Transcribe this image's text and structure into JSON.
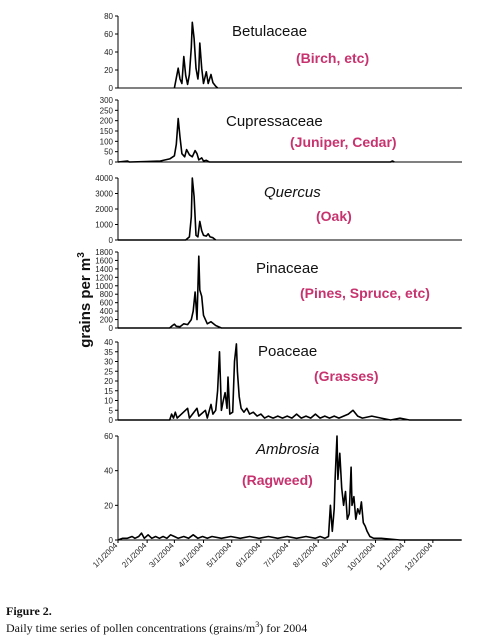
{
  "figure": {
    "label": "Figure 2.",
    "caption_prefix": "Daily time series of pollen concentrations (grains/m",
    "caption_sup": "3",
    "caption_suffix": ") for 2004"
  },
  "chart_data": {
    "type": "line",
    "ylabel": "grains per m",
    "ylabel_sup": "3",
    "x_tick_labels": [
      "1/1/2004",
      "2/1/2004",
      "3/1/2004",
      "4/1/2004",
      "5/1/2004",
      "6/1/2004",
      "7/1/2004",
      "8/1/2004",
      "9/1/2004",
      "10/1/2004",
      "11/1/2004",
      "12/1/2004"
    ],
    "panels": [
      {
        "name": "Betulaceae",
        "common": "(Birch, etc)",
        "italic": false,
        "ylim": [
          0,
          80
        ],
        "yticks": [
          "0",
          "20",
          "40",
          "60",
          "80"
        ],
        "series": [
          [
            60,
            0
          ],
          [
            64,
            22
          ],
          [
            66,
            10
          ],
          [
            68,
            5
          ],
          [
            70,
            35
          ],
          [
            72,
            14
          ],
          [
            74,
            4
          ],
          [
            76,
            15
          ],
          [
            78,
            45
          ],
          [
            79,
            73
          ],
          [
            81,
            55
          ],
          [
            83,
            22
          ],
          [
            85,
            10
          ],
          [
            86,
            20
          ],
          [
            87,
            50
          ],
          [
            89,
            22
          ],
          [
            91,
            5
          ],
          [
            94,
            18
          ],
          [
            96,
            5
          ],
          [
            99,
            15
          ],
          [
            101,
            6
          ],
          [
            104,
            2
          ],
          [
            106,
            0
          ]
        ]
      },
      {
        "name": "Cupressaceae",
        "common": "(Juniper, Cedar)",
        "italic": false,
        "ylim": [
          0,
          300
        ],
        "yticks": [
          "0",
          "50",
          "100",
          "150",
          "200",
          "250",
          "300"
        ],
        "series": [
          [
            0,
            0
          ],
          [
            10,
            5
          ],
          [
            12,
            0
          ],
          [
            30,
            2
          ],
          [
            45,
            5
          ],
          [
            55,
            15
          ],
          [
            60,
            30
          ],
          [
            62,
            85
          ],
          [
            64,
            210
          ],
          [
            66,
            120
          ],
          [
            68,
            40
          ],
          [
            71,
            25
          ],
          [
            73,
            60
          ],
          [
            76,
            35
          ],
          [
            79,
            25
          ],
          [
            82,
            55
          ],
          [
            84,
            40
          ],
          [
            86,
            10
          ],
          [
            89,
            20
          ],
          [
            91,
            5
          ],
          [
            94,
            8
          ],
          [
            97,
            0
          ],
          [
            290,
            0
          ],
          [
            292,
            5
          ],
          [
            294,
            0
          ]
        ]
      },
      {
        "name": "Quercus",
        "common": "(Oak)",
        "italic": true,
        "ylim": [
          0,
          4000
        ],
        "yticks": [
          "0",
          "1000",
          "2000",
          "3000",
          "4000"
        ],
        "series": [
          [
            0,
            0
          ],
          [
            72,
            0
          ],
          [
            74,
            100
          ],
          [
            76,
            200
          ],
          [
            78,
            1500
          ],
          [
            79,
            4000
          ],
          [
            81,
            2800
          ],
          [
            83,
            300
          ],
          [
            85,
            200
          ],
          [
            87,
            1200
          ],
          [
            89,
            600
          ],
          [
            91,
            300
          ],
          [
            94,
            250
          ],
          [
            96,
            400
          ],
          [
            98,
            200
          ],
          [
            101,
            150
          ],
          [
            104,
            0
          ]
        ]
      },
      {
        "name": "Pinaceae",
        "common": "(Pines, Spruce, etc)",
        "italic": false,
        "ylim": [
          0,
          1800
        ],
        "yticks": [
          "0",
          "200",
          "400",
          "600",
          "800",
          "1000",
          "1200",
          "1400",
          "1600",
          "1800"
        ],
        "series": [
          [
            0,
            0
          ],
          [
            55,
            0
          ],
          [
            58,
            60
          ],
          [
            60,
            90
          ],
          [
            62,
            40
          ],
          [
            66,
            30
          ],
          [
            70,
            100
          ],
          [
            74,
            80
          ],
          [
            78,
            200
          ],
          [
            80,
            400
          ],
          [
            82,
            850
          ],
          [
            84,
            200
          ],
          [
            86,
            1700
          ],
          [
            87,
            900
          ],
          [
            89,
            750
          ],
          [
            91,
            300
          ],
          [
            93,
            200
          ],
          [
            95,
            100
          ],
          [
            99,
            150
          ],
          [
            104,
            60
          ],
          [
            110,
            0
          ],
          [
            365,
            0
          ]
        ]
      },
      {
        "name": "Poaceae",
        "common": "(Grasses)",
        "italic": false,
        "ylim": [
          0,
          40
        ],
        "yticks": [
          "0",
          "5",
          "10",
          "15",
          "20",
          "25",
          "30",
          "35",
          "40"
        ],
        "series": [
          [
            0,
            0
          ],
          [
            55,
            0
          ],
          [
            57,
            3
          ],
          [
            59,
            1
          ],
          [
            61,
            4
          ],
          [
            63,
            1
          ],
          [
            74,
            6
          ],
          [
            76,
            1
          ],
          [
            84,
            6
          ],
          [
            86,
            2
          ],
          [
            93,
            5
          ],
          [
            95,
            1
          ],
          [
            99,
            8
          ],
          [
            101,
            3
          ],
          [
            104,
            5
          ],
          [
            106,
            15
          ],
          [
            108,
            35
          ],
          [
            110,
            5
          ],
          [
            112,
            10
          ],
          [
            114,
            14
          ],
          [
            116,
            6
          ],
          [
            117,
            22
          ],
          [
            119,
            3
          ],
          [
            122,
            4
          ],
          [
            124,
            30
          ],
          [
            126,
            39
          ],
          [
            127,
            25
          ],
          [
            129,
            12
          ],
          [
            131,
            6
          ],
          [
            134,
            4
          ],
          [
            137,
            6
          ],
          [
            140,
            3
          ],
          [
            144,
            4
          ],
          [
            148,
            2
          ],
          [
            152,
            3
          ],
          [
            156,
            1
          ],
          [
            160,
            2
          ],
          [
            165,
            1
          ],
          [
            170,
            2
          ],
          [
            175,
            1
          ],
          [
            180,
            2
          ],
          [
            185,
            1
          ],
          [
            190,
            3
          ],
          [
            195,
            1
          ],
          [
            200,
            2
          ],
          [
            205,
            1
          ],
          [
            210,
            3
          ],
          [
            215,
            1
          ],
          [
            220,
            2
          ],
          [
            225,
            1
          ],
          [
            230,
            2
          ],
          [
            235,
            1
          ],
          [
            240,
            2
          ],
          [
            245,
            3
          ],
          [
            250,
            5
          ],
          [
            255,
            2
          ],
          [
            260,
            1
          ],
          [
            270,
            2
          ],
          [
            280,
            1
          ],
          [
            290,
            0
          ],
          [
            300,
            1
          ],
          [
            310,
            0
          ],
          [
            365,
            0
          ]
        ]
      },
      {
        "name": "Ambrosia",
        "common": "(Ragweed)",
        "italic": true,
        "ylim": [
          0,
          60
        ],
        "yticks": [
          "0",
          "20",
          "40",
          "60"
        ],
        "series": [
          [
            0,
            0
          ],
          [
            5,
            1
          ],
          [
            10,
            1
          ],
          [
            15,
            2
          ],
          [
            18,
            1
          ],
          [
            22,
            2
          ],
          [
            25,
            4
          ],
          [
            28,
            1
          ],
          [
            32,
            3
          ],
          [
            36,
            1
          ],
          [
            40,
            2
          ],
          [
            44,
            1
          ],
          [
            48,
            2
          ],
          [
            52,
            1
          ],
          [
            56,
            3
          ],
          [
            60,
            2
          ],
          [
            64,
            1
          ],
          [
            70,
            2
          ],
          [
            75,
            1
          ],
          [
            80,
            3
          ],
          [
            85,
            1
          ],
          [
            90,
            2
          ],
          [
            95,
            1
          ],
          [
            100,
            2
          ],
          [
            110,
            1
          ],
          [
            120,
            2
          ],
          [
            130,
            1
          ],
          [
            140,
            2
          ],
          [
            150,
            1
          ],
          [
            160,
            2
          ],
          [
            170,
            1
          ],
          [
            180,
            2
          ],
          [
            190,
            1
          ],
          [
            200,
            2
          ],
          [
            210,
            1
          ],
          [
            215,
            2
          ],
          [
            220,
            1
          ],
          [
            224,
            2
          ],
          [
            226,
            20
          ],
          [
            228,
            5
          ],
          [
            230,
            18
          ],
          [
            231,
            35
          ],
          [
            233,
            60
          ],
          [
            234,
            35
          ],
          [
            236,
            50
          ],
          [
            238,
            30
          ],
          [
            240,
            20
          ],
          [
            242,
            28
          ],
          [
            244,
            12
          ],
          [
            246,
            15
          ],
          [
            248,
            42
          ],
          [
            249,
            20
          ],
          [
            251,
            25
          ],
          [
            253,
            12
          ],
          [
            255,
            18
          ],
          [
            257,
            15
          ],
          [
            259,
            22
          ],
          [
            261,
            10
          ],
          [
            263,
            8
          ],
          [
            265,
            5
          ],
          [
            268,
            2
          ],
          [
            272,
            1
          ],
          [
            280,
            1
          ],
          [
            300,
            0
          ],
          [
            330,
            0
          ],
          [
            365,
            0
          ]
        ]
      }
    ]
  }
}
